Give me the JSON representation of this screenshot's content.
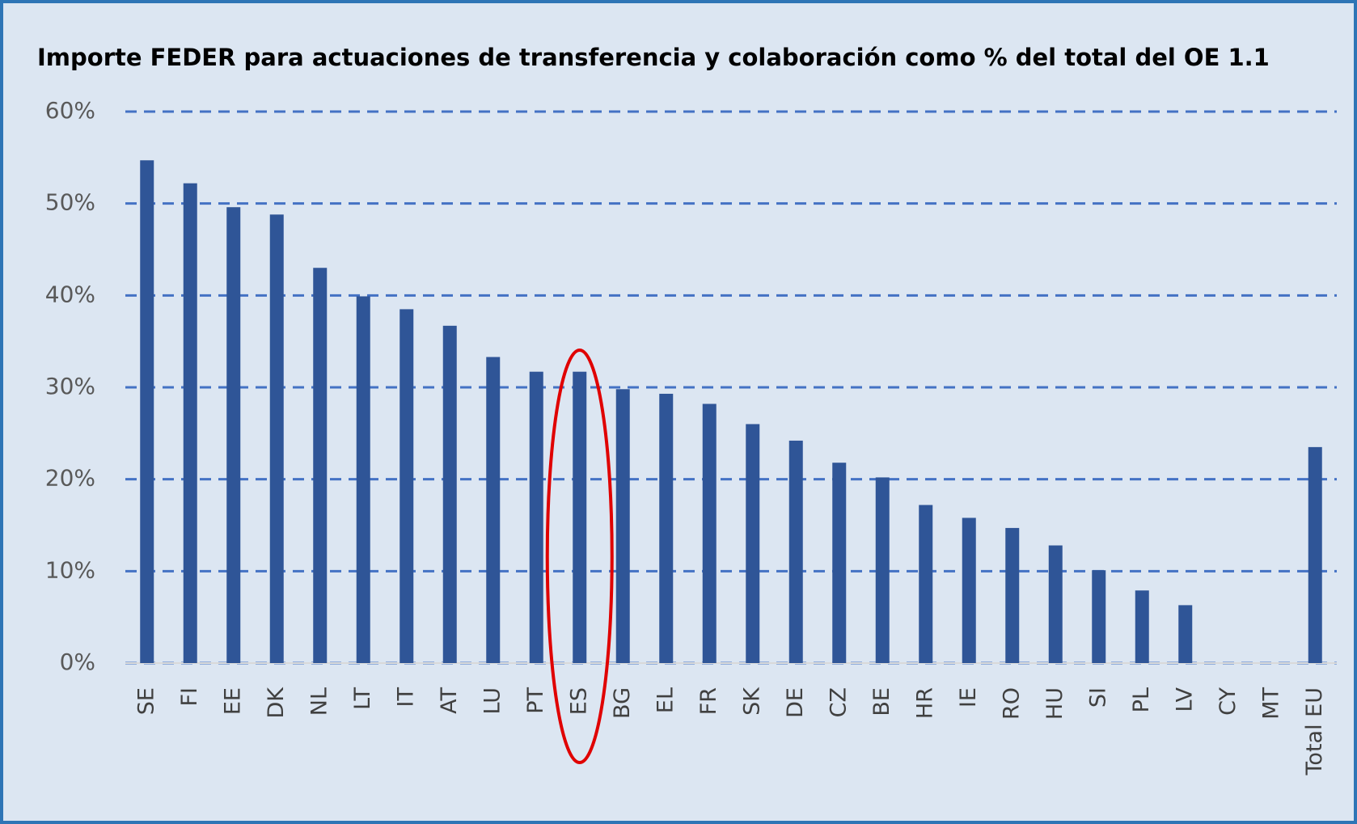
{
  "chart_data": {
    "type": "bar",
    "title": "Importe FEDER para actuaciones de transferencia y colaboración como % del total del OE 1.1",
    "categories": [
      "SE",
      "FI",
      "EE",
      "DK",
      "NL",
      "LT",
      "IT",
      "AT",
      "LU",
      "PT",
      "ES",
      "BG",
      "EL",
      "FR",
      "SK",
      "DE",
      "CZ",
      "BE",
      "HR",
      "IE",
      "RO",
      "HU",
      "SI",
      "PL",
      "LV",
      "CY",
      "MT",
      "Total EU"
    ],
    "values": [
      54.7,
      52.2,
      49.6,
      48.8,
      43.0,
      39.9,
      38.5,
      36.7,
      33.3,
      31.7,
      31.7,
      29.8,
      29.3,
      28.2,
      26.0,
      24.2,
      21.8,
      20.2,
      17.2,
      15.8,
      14.7,
      12.8,
      10.1,
      7.9,
      6.3,
      0,
      0,
      23.5
    ],
    "color": "#2f5597",
    "ylim": [
      0,
      60
    ],
    "yticks": [
      {
        "value": 0,
        "label": "0%"
      },
      {
        "value": 10,
        "label": "10%"
      },
      {
        "value": 20,
        "label": "20%"
      },
      {
        "value": 30,
        "label": "30%"
      },
      {
        "value": 40,
        "label": "40%"
      },
      {
        "value": 50,
        "label": "50%"
      },
      {
        "value": 60,
        "label": "60%"
      }
    ],
    "grid": true
  }
}
